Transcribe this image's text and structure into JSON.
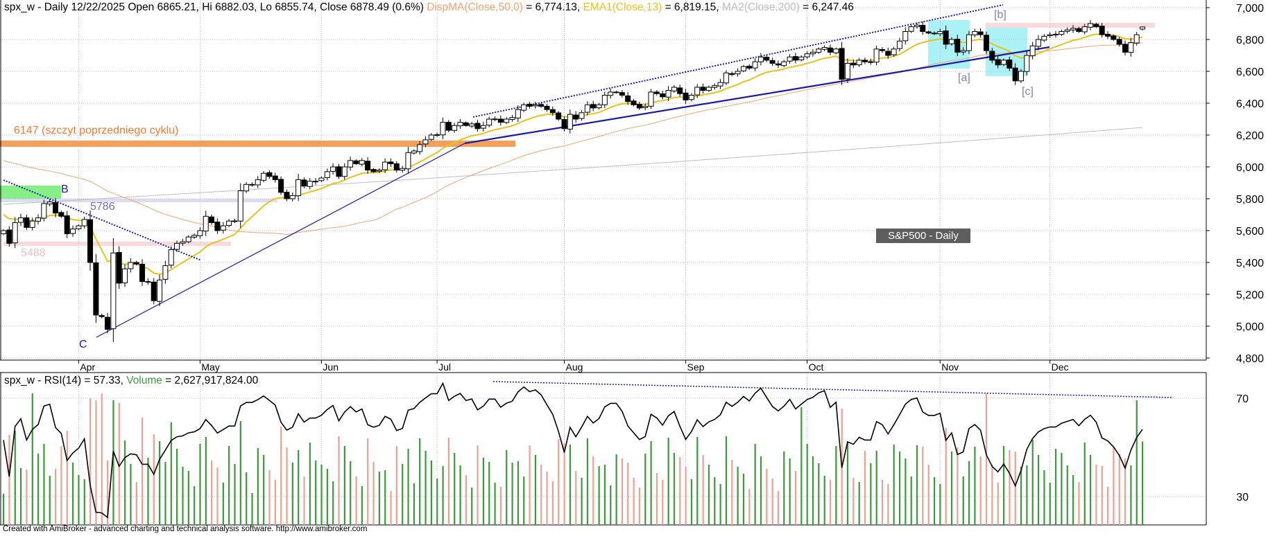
{
  "header": {
    "symbol_info": "spx_w - Daily 12/22/2025 Open 6865.21, Hi 6882.03, Lo 6855.74, Close 6878.49 (0.6%)",
    "dispma_label": "DispMA(Close,50,0)",
    "dispma_value": " = 6,774.13, ",
    "ema_label": "EMA1(Close,13)",
    "ema_value": " = 6,819.15, ",
    "ma2_label": "MA2(Close,200)",
    "ma2_value": " = 6,247.46"
  },
  "rsi_header": {
    "prefix": "spx_w - RSI(14) = 57.33, ",
    "volume_label": "Volume",
    "volume_value": " = 2,627,917,824.00"
  },
  "annotations": {
    "prev_cycle_peak": "6147 (szczyt poprzedniego cyklu)",
    "level_5786": "5786",
    "level_5488": "5488",
    "wave_b": "B",
    "wave_c": "C",
    "wave_a_small": "[a]",
    "wave_b_small": "[b]",
    "wave_c_small": "[c]",
    "badge": "S&P500 - Daily"
  },
  "footer": "Created with AmiBroker - advanced charting and technical analysis software. http://www.amibroker.com",
  "colors": {
    "dispma": "#f2a36c",
    "ema": "#e8c21a",
    "ma200": "#bdbdbd",
    "trend": "#1a1aa8",
    "orange_band": "#f5a05a",
    "green_box": "#88ee88",
    "cyan_box": "#aaf2f5",
    "pink_band": "#f9d9dc",
    "lavender_band": "#dcdcf4",
    "volume_up": "#3a9a3a",
    "volume_down": "#eca090"
  },
  "chart_data": {
    "type": "candlestick",
    "title": "S&P500 - Daily",
    "price_axis": {
      "ylim": [
        4800,
        7000
      ],
      "ticks": [
        "7,000",
        "6,800",
        "6,600",
        "6,400",
        "6,200",
        "6,000",
        "5,800",
        "5,600",
        "5,400",
        "5,200",
        "5,000",
        "4,800"
      ]
    },
    "rsi_axis": {
      "ticks": [
        "70",
        "30"
      ]
    },
    "months": [
      {
        "label": "Apr",
        "start_index": 13
      },
      {
        "label": "May",
        "start_index": 34
      },
      {
        "label": "Jun",
        "start_index": 55
      },
      {
        "label": "Jul",
        "start_index": 75
      },
      {
        "label": "Aug",
        "start_index": 97
      },
      {
        "label": "Sep",
        "start_index": 118
      },
      {
        "label": "Oct",
        "start_index": 139
      },
      {
        "label": "Nov",
        "start_index": 162
      },
      {
        "label": "Dec",
        "start_index": 181
      }
    ],
    "ma200_range": [
      5765,
      6247.46
    ],
    "close": [
      5600,
      5520,
      5650,
      5680,
      5620,
      5660,
      5680,
      5770,
      5780,
      5710,
      5690,
      5580,
      5610,
      5630,
      5670,
      5400,
      5070,
      5060,
      4980,
      5460,
      5270,
      5360,
      5400,
      5390,
      5280,
      5280,
      5160,
      5290,
      5380,
      5480,
      5520,
      5530,
      5560,
      5570,
      5600,
      5690,
      5650,
      5600,
      5630,
      5660,
      5660,
      5850,
      5890,
      5890,
      5920,
      5960,
      5940,
      5920,
      5840,
      5800,
      5820,
      5920,
      5880,
      5910,
      5910,
      5930,
      5970,
      6000,
      5940,
      6000,
      6040,
      6020,
      6040,
      5980,
      5970,
      5980,
      6030,
      6020,
      5980,
      5990,
      6090,
      6100,
      6140,
      6170,
      6200,
      6200,
      6280,
      6230,
      6260,
      6280,
      6260,
      6270,
      6240,
      6260,
      6300,
      6300,
      6280,
      6300,
      6310,
      6360,
      6390,
      6380,
      6390,
      6380,
      6360,
      6340,
      6300,
      6240,
      6330,
      6300,
      6340,
      6390,
      6370,
      6390,
      6450,
      6470,
      6470,
      6450,
      6410,
      6390,
      6370,
      6380,
      6470,
      6460,
      6440,
      6480,
      6500,
      6460,
      6420,
      6450,
      6500,
      6480,
      6500,
      6510,
      6530,
      6590,
      6580,
      6600,
      6630,
      6620,
      6660,
      6690,
      6670,
      6650,
      6640,
      6660,
      6690,
      6670,
      6690,
      6710,
      6720,
      6740,
      6750,
      6720,
      6740,
      6550,
      6650,
      6640,
      6670,
      6660,
      6660,
      6740,
      6730,
      6700,
      6740,
      6790,
      6850,
      6880,
      6890,
      6850,
      6840,
      6840,
      6850,
      6770,
      6800,
      6720,
      6730,
      6830,
      6850,
      6830,
      6730,
      6670,
      6640,
      6670,
      6620,
      6540,
      6600,
      6700,
      6760,
      6800,
      6820,
      6830,
      6830,
      6850,
      6860,
      6870,
      6850,
      6880,
      6900,
      6880,
      6830,
      6820,
      6800,
      6770,
      6720,
      6780,
      6830,
      6878.49
    ],
    "last_bar": {
      "open": 6865.21,
      "high": 6882.03,
      "low": 6855.74,
      "close": 6878.49
    },
    "indicators": {
      "dispma_50": 6774.13,
      "ema_13": 6819.15,
      "ma_200": 6247.46,
      "rsi_14": 57.33,
      "volume": 2627917824
    }
  }
}
